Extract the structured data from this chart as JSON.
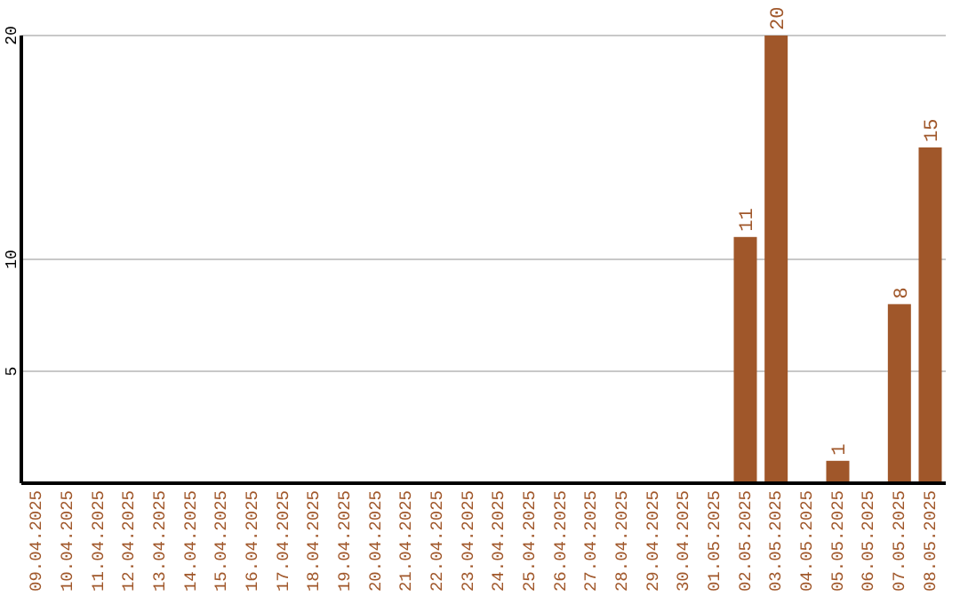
{
  "chart_data": {
    "type": "bar",
    "categories": [
      "09.04.2025",
      "10.04.2025",
      "11.04.2025",
      "12.04.2025",
      "13.04.2025",
      "14.04.2025",
      "15.04.2025",
      "16.04.2025",
      "17.04.2025",
      "18.04.2025",
      "19.04.2025",
      "20.04.2025",
      "21.04.2025",
      "22.04.2025",
      "23.04.2025",
      "24.04.2025",
      "25.04.2025",
      "26.04.2025",
      "27.04.2025",
      "28.04.2025",
      "29.04.2025",
      "30.04.2025",
      "01.05.2025",
      "02.05.2025",
      "03.05.2025",
      "04.05.2025",
      "05.05.2025",
      "06.05.2025",
      "07.05.2025",
      "08.05.2025"
    ],
    "values": [
      0,
      0,
      0,
      0,
      0,
      0,
      0,
      0,
      0,
      0,
      0,
      0,
      0,
      0,
      0,
      0,
      0,
      0,
      0,
      0,
      0,
      0,
      0,
      11,
      20,
      0,
      1,
      0,
      8,
      15
    ],
    "value_labels": [
      null,
      null,
      null,
      null,
      null,
      null,
      null,
      null,
      null,
      null,
      null,
      null,
      null,
      null,
      null,
      null,
      null,
      null,
      null,
      null,
      null,
      null,
      null,
      "11",
      "20",
      null,
      "1",
      null,
      "8",
      "15"
    ],
    "color": "#a0572a",
    "ylim": [
      0,
      20
    ],
    "yticks": [
      5,
      10,
      20
    ],
    "grid": "y"
  }
}
